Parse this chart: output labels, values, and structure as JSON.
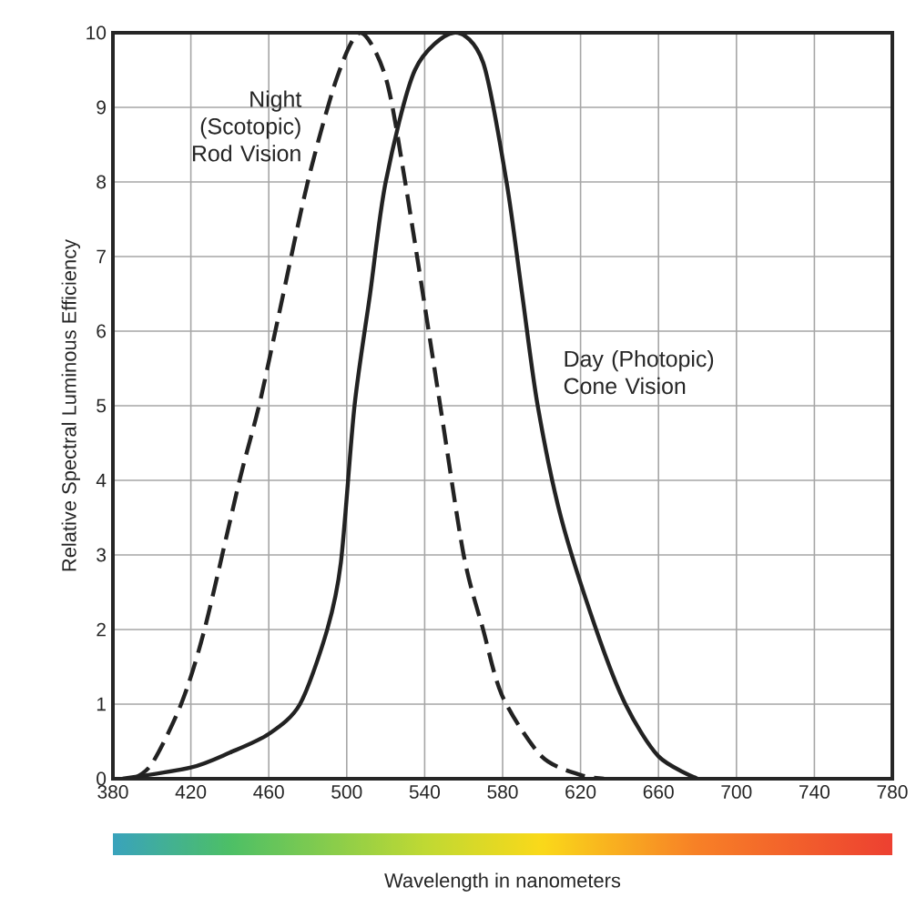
{
  "chart_data": {
    "type": "line",
    "xlabel": "Wavelength in nanometers",
    "ylabel": "Relative Spectral Luminous Efficiency",
    "xlim": [
      380,
      780
    ],
    "xticks": [
      380,
      420,
      460,
      500,
      540,
      580,
      620,
      660,
      700,
      740,
      780
    ],
    "ylim": [
      0,
      10
    ],
    "yticks": [
      0,
      1,
      2,
      3,
      4,
      5,
      6,
      7,
      8,
      9,
      10
    ],
    "grid": true,
    "series": [
      {
        "name": "Night (Scotopic) Rod Vision",
        "color": "#222222",
        "line_style": "dashed",
        "x": [
          390,
          400,
          415,
          427,
          445,
          455,
          465,
          480,
          495,
          507,
          520,
          530,
          548,
          560,
          570,
          580,
          600,
          620,
          632
        ],
        "values": [
          0,
          0.2,
          1,
          2,
          4,
          5,
          6.2,
          8,
          9.4,
          10,
          9.4,
          8,
          5,
          3,
          2,
          1.1,
          0.3,
          0.05,
          0
        ]
      },
      {
        "name": "Day (Photopic) Cone Vision",
        "color": "#222222",
        "line_style": "solid",
        "x": [
          385,
          420,
          440,
          460,
          476,
          490,
          497,
          504,
          512,
          520,
          535,
          555,
          570,
          582,
          590,
          598,
          610,
          628,
          643,
          660,
          680
        ],
        "values": [
          0,
          0.15,
          0.35,
          0.6,
          1,
          2,
          2.9,
          5,
          6.5,
          8,
          9.5,
          10,
          9.6,
          8,
          6.5,
          5,
          3.5,
          2,
          1,
          0.3,
          0
        ]
      }
    ]
  }
}
